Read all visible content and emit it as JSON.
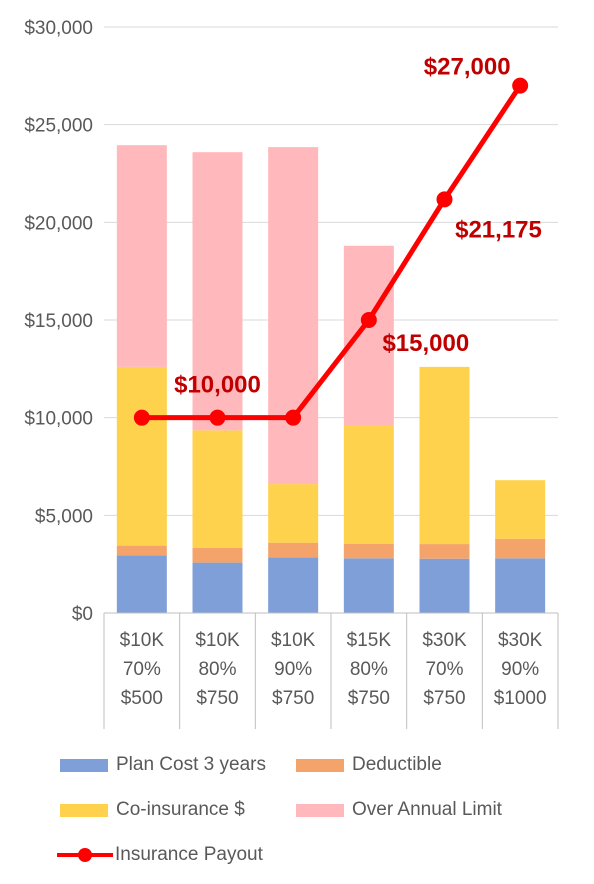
{
  "chart_data": {
    "type": "bar",
    "stacked": true,
    "categories": [
      [
        "$10K",
        "70%",
        "$500"
      ],
      [
        "$10K",
        "80%",
        "$750"
      ],
      [
        "$10K",
        "90%",
        "$750"
      ],
      [
        "$15K",
        "80%",
        "$750"
      ],
      [
        "$30K",
        "70%",
        "$750"
      ],
      [
        "$30K",
        "90%",
        "$1000"
      ]
    ],
    "series": [
      {
        "name": "Plan Cost 3 years",
        "type": "bar",
        "color": "#7f9fd8",
        "values": [
          2950,
          2580,
          2850,
          2800,
          2780,
          2800
        ]
      },
      {
        "name": "Deductible",
        "type": "bar",
        "color": "#f4a46a",
        "values": [
          500,
          750,
          750,
          750,
          750,
          1000
        ]
      },
      {
        "name": "Co-insurance $",
        "type": "bar",
        "color": "#ffd24d",
        "values": [
          9150,
          6020,
          3000,
          6050,
          9070,
          3000
        ]
      },
      {
        "name": "Over Annual Limit",
        "type": "bar",
        "color": "#ffb8bb",
        "values": [
          11350,
          14240,
          17250,
          9200,
          0,
          0
        ]
      },
      {
        "name": "Insurance Payout",
        "type": "line",
        "color": "#ff0000",
        "points": [
          {
            "index": 0,
            "value": 10000
          },
          {
            "index": 1,
            "value": 10000
          },
          {
            "index": 2,
            "value": 10000
          },
          {
            "index": 3,
            "value": 15000
          },
          {
            "index": 4,
            "value": 21175
          },
          {
            "index": 5,
            "value": 27000
          }
        ],
        "data_labels": [
          {
            "index": 1,
            "text": "$10,000"
          },
          {
            "index": 3,
            "text": "$15,000"
          },
          {
            "index": 4,
            "text": "$21,175"
          },
          {
            "index": 5,
            "text": "$27,000"
          }
        ]
      }
    ],
    "y_ticks": [
      "$0",
      "$5,000",
      "$10,000",
      "$15,000",
      "$20,000",
      "$25,000",
      "$30,000"
    ],
    "ylim": [
      0,
      30000
    ],
    "grid": true,
    "legend_position": "bottom"
  }
}
